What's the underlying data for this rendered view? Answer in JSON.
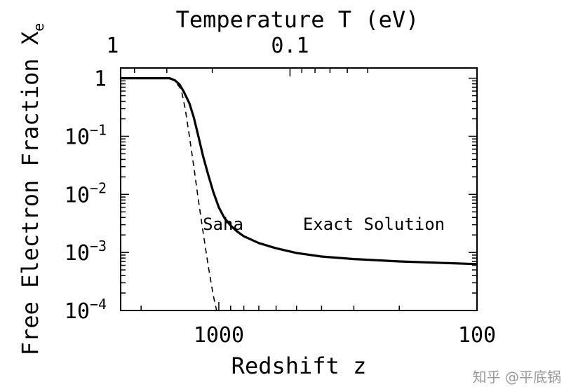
{
  "chart_data": {
    "type": "line",
    "xlabel": "Redshift z",
    "ylabel": "Free Electron Fraction X",
    "ylabel_subscript": "e",
    "x2label": "Temperature T (eV)",
    "x_scale": "log",
    "x_direction": "decreasing",
    "y_scale": "log",
    "xlim": [
      2400,
      100
    ],
    "ylim": [
      0.0001,
      1.5
    ],
    "x_ticks": [
      {
        "value": 1000,
        "label": "1000"
      },
      {
        "value": 100,
        "label": "100"
      }
    ],
    "y_ticks": [
      {
        "value": 1,
        "base": "1",
        "exp": ""
      },
      {
        "value": 0.1,
        "base": "10",
        "exp": "−1"
      },
      {
        "value": 0.01,
        "base": "10",
        "exp": "−2"
      },
      {
        "value": 0.001,
        "base": "10",
        "exp": "−3"
      },
      {
        "value": 0.0001,
        "base": "10",
        "exp": "−4"
      }
    ],
    "x2_ticks": [
      {
        "z": 2580,
        "label": "1"
      },
      {
        "z": 530,
        "label": "0.1"
      }
    ],
    "series": [
      {
        "name": "Exact Solution",
        "style": "solid",
        "points": [
          [
            2400,
            1.0
          ],
          [
            1650,
            1.0
          ],
          [
            1550,
            1.0
          ],
          [
            1480,
            0.92
          ],
          [
            1420,
            0.78
          ],
          [
            1370,
            0.6
          ],
          [
            1300,
            0.37
          ],
          [
            1250,
            0.21
          ],
          [
            1200,
            0.1
          ],
          [
            1150,
            0.045
          ],
          [
            1100,
            0.022
          ],
          [
            1050,
            0.011
          ],
          [
            1000,
            0.006
          ],
          [
            950,
            0.0039
          ],
          [
            900,
            0.0029
          ],
          [
            850,
            0.0023
          ],
          [
            800,
            0.0019
          ],
          [
            700,
            0.00145
          ],
          [
            600,
            0.00118
          ],
          [
            500,
            0.00098
          ],
          [
            400,
            0.00085
          ],
          [
            300,
            0.00077
          ],
          [
            200,
            0.0007
          ],
          [
            100,
            0.00063
          ]
        ]
      },
      {
        "name": "Saha",
        "style": "dashed",
        "points": [
          [
            2400,
            1.0
          ],
          [
            1650,
            1.0
          ],
          [
            1500,
            0.95
          ],
          [
            1400,
            0.65
          ],
          [
            1350,
            0.3
          ],
          [
            1300,
            0.1
          ],
          [
            1250,
            0.03
          ],
          [
            1200,
            0.008
          ],
          [
            1150,
            0.0022
          ],
          [
            1100,
            0.0006
          ],
          [
            1050,
            0.00018
          ],
          [
            1020,
            0.0001
          ]
        ]
      }
    ],
    "annotations": [
      {
        "text": "Saha",
        "x": 1560,
        "y": 0.0045
      },
      {
        "text": "Exact Solution",
        "x": 870,
        "y": 0.0045
      }
    ]
  },
  "watermark": "知乎 @平底锅"
}
